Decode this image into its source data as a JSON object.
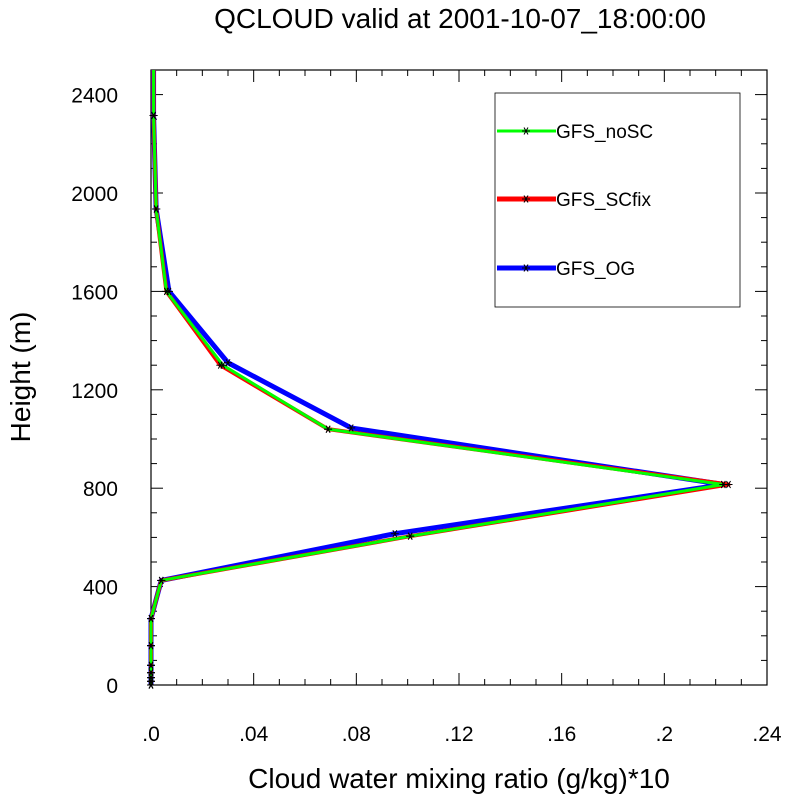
{
  "chart_data": {
    "type": "line",
    "title": "QCLOUD valid at 2001-10-07_18:00:00",
    "xlabel": "Cloud water mixing ratio (g/kg)*10",
    "ylabel": "Height (m)",
    "xlim": [
      0,
      0.24
    ],
    "ylim": [
      0,
      2500
    ],
    "xticks": [
      0,
      0.04,
      0.08,
      0.12,
      0.16,
      0.2,
      0.24
    ],
    "xtick_labels": [
      ".0",
      ".04",
      ".08",
      ".12",
      ".16",
      ".2",
      ".24"
    ],
    "yticks": [
      0,
      400,
      800,
      1200,
      1600,
      2000,
      2400
    ],
    "ytick_labels": [
      "0",
      "400",
      "800",
      "1200",
      "1600",
      "2000",
      "2400"
    ],
    "legend_position": "top-right",
    "grid": false,
    "series": [
      {
        "name": "GFS_OG",
        "color": "#0000ff",
        "points": [
          [
            0.0,
            0
          ],
          [
            0.0,
            15
          ],
          [
            0.0,
            30
          ],
          [
            0.0,
            50
          ],
          [
            0.0,
            80
          ],
          [
            0.0,
            160
          ],
          [
            0.0,
            270
          ],
          [
            0.004,
            425
          ],
          [
            0.095,
            615
          ],
          [
            0.223,
            815
          ],
          [
            0.078,
            1045
          ],
          [
            0.03,
            1310
          ],
          [
            0.007,
            1600
          ],
          [
            0.002,
            1935
          ],
          [
            0.001,
            2315
          ],
          [
            0.001,
            2500
          ]
        ]
      },
      {
        "name": "GFS_SCfix",
        "color": "#ff0000",
        "points": [
          [
            0.0,
            0
          ],
          [
            0.0,
            15
          ],
          [
            0.0,
            30
          ],
          [
            0.0,
            50
          ],
          [
            0.0,
            80
          ],
          [
            0.0,
            160
          ],
          [
            0.0,
            270
          ],
          [
            0.004,
            425
          ],
          [
            0.101,
            605
          ],
          [
            0.225,
            815
          ],
          [
            0.069,
            1040
          ],
          [
            0.027,
            1300
          ],
          [
            0.006,
            1600
          ],
          [
            0.002,
            1935
          ],
          [
            0.001,
            2315
          ],
          [
            0.001,
            2500
          ]
        ]
      },
      {
        "name": "GFS_noSC",
        "color": "#00ff00",
        "points": [
          [
            0.0,
            0
          ],
          [
            0.0,
            15
          ],
          [
            0.0,
            30
          ],
          [
            0.0,
            50
          ],
          [
            0.0,
            80
          ],
          [
            0.0,
            160
          ],
          [
            0.0,
            270
          ],
          [
            0.004,
            425
          ],
          [
            0.101,
            605
          ],
          [
            0.223,
            815
          ],
          [
            0.069,
            1040
          ],
          [
            0.028,
            1300
          ],
          [
            0.006,
            1600
          ],
          [
            0.002,
            1935
          ],
          [
            0.001,
            2315
          ],
          [
            0.001,
            2500
          ]
        ]
      }
    ],
    "legend": [
      {
        "name": "GFS_noSC",
        "color": "#00ff00"
      },
      {
        "name": "GFS_SCfix",
        "color": "#ff0000"
      },
      {
        "name": "GFS_OG",
        "color": "#0000ff"
      }
    ]
  }
}
